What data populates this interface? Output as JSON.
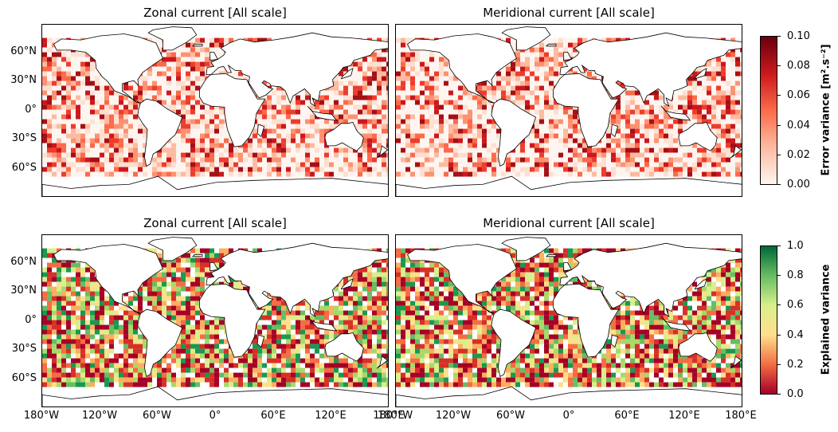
{
  "panels": [
    {
      "title": "Zonal current [All scale]",
      "field": "error"
    },
    {
      "title": "Meridional current [All scale]",
      "field": "error"
    },
    {
      "title": "Zonal current [All scale]",
      "field": "explained"
    },
    {
      "title": "Meridional current [All scale]",
      "field": "explained"
    }
  ],
  "lat_ticks": [
    "60°N",
    "30°N",
    "0°",
    "30°S",
    "60°S"
  ],
  "lon_ticks_left": [
    "180°W",
    "120°W",
    "60°W",
    "0°",
    "60°E",
    "120°E",
    "180°E"
  ],
  "lon_ticks_right": [
    "180°W",
    "120°W",
    "60°W",
    "0°",
    "60°E",
    "120°E",
    "180°E"
  ],
  "colorbar_error": {
    "label": "Error variance [m².s⁻²]",
    "ticks": [
      "0.00",
      "0.02",
      "0.04",
      "0.06",
      "0.08",
      "0.10"
    ],
    "colors": [
      "#fff5f0",
      "#fcbba1",
      "#fb6a4a",
      "#cb181d",
      "#67000d"
    ],
    "range": [
      0,
      0.1
    ]
  },
  "colorbar_explained": {
    "label": "Explained variance",
    "ticks": [
      "0.0",
      "0.2",
      "0.4",
      "0.6",
      "0.8",
      "1.0"
    ],
    "colors": [
      "#a50026",
      "#f46d43",
      "#fee08b",
      "#d9ef8b",
      "#66bd63",
      "#006837"
    ],
    "range": [
      0,
      1
    ]
  }
}
